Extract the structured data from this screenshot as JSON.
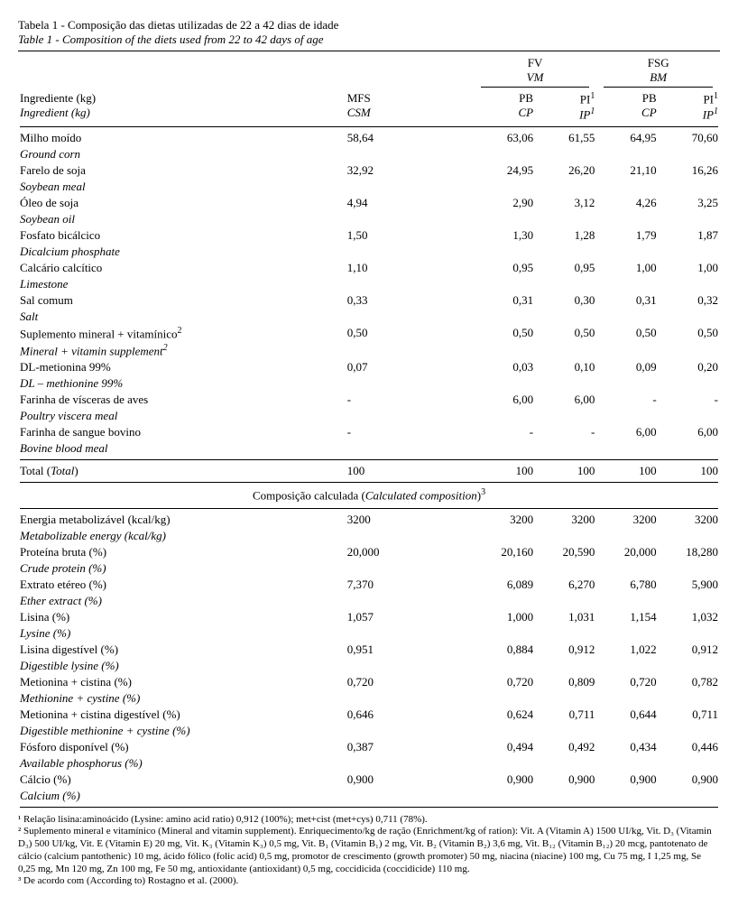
{
  "title_pt": "Tabela 1 - Composição das dietas utilizadas de 22 a 42 dias de idade",
  "title_en": "Table 1 -   Composition of the diets used from 22 to 42 days of age",
  "group_fv_pt": "FV",
  "group_fv_en": "VM",
  "group_fsg_pt": "FSG",
  "group_fsg_en": "BM",
  "hdr_ing_pt": "Ingrediente (kg)",
  "hdr_ing_en": "Ingredient (kg)",
  "hdr_mfs": "MFS",
  "hdr_csm": "CSM",
  "hdr_pb": "PB",
  "hdr_cp": "CP",
  "hdr_pi": "PI",
  "hdr_ip": "IP",
  "sup1": "1",
  "rows": [
    {
      "pt": "Milho moído",
      "en": "Ground corn",
      "v": [
        "58,64",
        "63,06",
        "61,55",
        "64,95",
        "70,60"
      ]
    },
    {
      "pt": "Farelo de soja",
      "en": "Soybean meal",
      "v": [
        "32,92",
        "24,95",
        "26,20",
        "21,10",
        "16,26"
      ]
    },
    {
      "pt": "Óleo de soja",
      "en": "Soybean oil",
      "v": [
        "4,94",
        "2,90",
        "3,12",
        "4,26",
        "3,25"
      ]
    },
    {
      "pt": "Fosfato bicálcico",
      "en": "Dicalcium phosphate",
      "v": [
        "1,50",
        "1,30",
        "1,28",
        "1,79",
        "1,87"
      ]
    },
    {
      "pt": "Calcário calcítico",
      "en": "Limestone",
      "v": [
        "1,10",
        "0,95",
        "0,95",
        "1,00",
        "1,00"
      ]
    },
    {
      "pt": "Sal comum",
      "en": "Salt",
      "v": [
        "0,33",
        "0,31",
        "0,30",
        "0,31",
        "0,32"
      ]
    },
    {
      "pt": "Suplemento mineral + vitamínico",
      "en": "Mineral + vitamin supplement",
      "sup": "2",
      "en_sup": "2",
      "v": [
        "0,50",
        "0,50",
        "0,50",
        "0,50",
        "0,50"
      ]
    },
    {
      "pt": "DL-metionina 99%",
      "en": "DL – methionine 99%",
      "v": [
        "0,07",
        "0,03",
        "0,10",
        "0,09",
        "0,20"
      ]
    },
    {
      "pt": "Farinha de vísceras de aves",
      "en": "Poultry viscera meal",
      "v": [
        "-",
        "6,00",
        "6,00",
        "-",
        "-"
      ]
    },
    {
      "pt": "Farinha de sangue bovino",
      "en": "Bovine blood meal",
      "v": [
        "-",
        "-",
        "-",
        "6,00",
        "6,00"
      ]
    }
  ],
  "total_label_pt": "Total",
  "total_label_en": "Total",
  "total_values": [
    "100",
    "100",
    "100",
    "100",
    "100"
  ],
  "calc_title_pt": "Composição calculada",
  "calc_title_en": "Calculated composition",
  "calc_sup": "3",
  "calc_rows": [
    {
      "pt": "Energia metabolizável (kcal/kg)",
      "en": "Metabolizable energy (kcal/kg)",
      "v": [
        "3200",
        "3200",
        "3200",
        "3200",
        "3200"
      ]
    },
    {
      "pt": "Proteína bruta (%)",
      "en": "Crude protein (%)",
      "v": [
        "20,000",
        "20,160",
        "20,590",
        "20,000",
        "18,280"
      ]
    },
    {
      "pt": "Extrato etéreo (%)",
      "en": "Ether extract (%)",
      "v": [
        "7,370",
        "6,089",
        "6,270",
        "6,780",
        "5,900"
      ]
    },
    {
      "pt": "Lisina (%)",
      "en": "Lysine (%)",
      "v": [
        "1,057",
        "1,000",
        "1,031",
        "1,154",
        "1,032"
      ]
    },
    {
      "pt": "Lisina digestível (%)",
      "en": "Digestible lysine (%)",
      "v": [
        "0,951",
        "0,884",
        "0,912",
        "1,022",
        "0,912"
      ]
    },
    {
      "pt": "Metionina + cistina (%)",
      "en": "Methionine + cystine (%)",
      "v": [
        "0,720",
        "0,720",
        "0,809",
        "0,720",
        "0,782"
      ]
    },
    {
      "pt": "Metionina + cistina digestível (%)",
      "en": "Digestible methionine + cystine (%)",
      "v": [
        "0,646",
        "0,624",
        "0,711",
        "0,644",
        "0,711"
      ]
    },
    {
      "pt": "Fósforo disponível (%)",
      "en": "Available phosphorus (%)",
      "v": [
        "0,387",
        "0,494",
        "0,492",
        "0,434",
        "0,446"
      ]
    },
    {
      "pt": "Cálcio (%)",
      "en": "Calcium (%)",
      "v": [
        "0,900",
        "0,900",
        "0,900",
        "0,900",
        "0,900"
      ]
    }
  ],
  "footnote1": "¹ Relação lisina:aminoácido (Lysine: amino acid ratio)  0,912 (100%); met+cist (met+cys) 0,711 (78%).",
  "footnote2": "² Suplemento mineral e vitamínico (Mineral and vitamin supplement). Enriquecimento/kg de ração (Enrichment/kg of ration): Vit. A (Vitamin A) 1500 UI/kg, Vit. D₃ (Vitamin D₃) 500 UI/kg, Vit. E (Vitamin E) 20 mg, Vit. K₃ (Vitamin K₃) 0,5 mg, Vit. B₁ (Vitamin B₁) 2 mg, Vit. B₂ (Vitamin B₂) 3,6 mg, Vit. B₁₂ (Vitamin B₁₂) 20 mcg, pantotenato de cálcio (calcium pantothenic) 10 mg, ácido fólico (folic acid) 0,5 mg, promotor de crescimento (growth promoter) 50 mg, niacina (niacine) 100 mg, Cu 75 mg, I 1,25 mg, Se 0,25 mg, Mn 120 mg, Zn 100 mg, Fe 50 mg, antioxidante (antioxidant) 0,5 mg,  coccidicida (coccidicide) 110 mg.",
  "footnote3": "³ De acordo com (According to) Rostagno et al. (2000)."
}
